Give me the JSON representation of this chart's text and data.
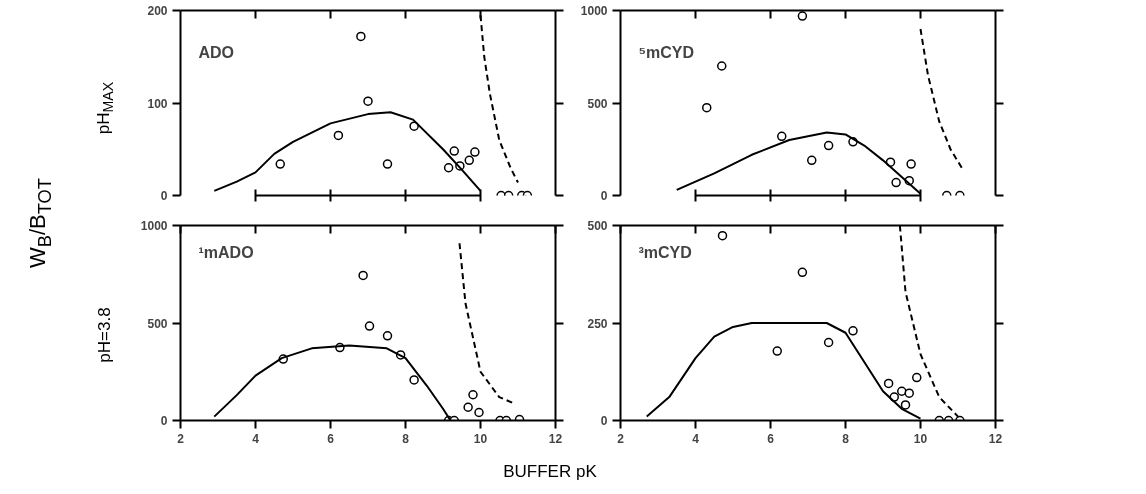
{
  "chart_data": [
    {
      "type": "scatter",
      "annotations": [
        "ADO",
        "W$_{B}$/B$_{TOT}$"
      ],
      "ylabel": "pH$_{MAX}$",
      "xlim": [
        2,
        12
      ],
      "ylim": [
        0,
        200
      ],
      "xticks": [
        {
          "value": 4,
          "label": null
        },
        {
          "value": 6,
          "label": null
        },
        {
          "value": 8,
          "label": null
        },
        {
          "value": 10,
          "label": null
        }
      ],
      "yticks": [
        0,
        100,
        200
      ],
      "tick_labels": "y",
      "series": [
        {
          "marker": "circle",
          "color": "#000000",
          "x": [
            4.66,
            6.21,
            6.81,
            7.0,
            7.52,
            8.23,
            9.15,
            9.3,
            9.45,
            9.7,
            9.85,
            10.55,
            10.75,
            11.1,
            11.25
          ],
          "values": [
            34,
            65,
            172,
            102,
            34,
            75,
            30,
            48,
            32,
            38,
            47,
            0,
            0,
            0,
            0
          ]
        },
        {
          "type": "line",
          "line_style": "solid",
          "color": "#000000",
          "x": [
            2.9,
            3.5,
            4.0,
            4.5,
            5.0,
            6.0,
            7.0,
            7.6,
            8.2,
            9.0,
            9.5,
            10.0
          ],
          "values": [
            5,
            15,
            25,
            45,
            58,
            78,
            88,
            90,
            82,
            50,
            28,
            5
          ]
        },
        {
          "type": "line",
          "line_style": "dashed",
          "color": "#000000",
          "x": [
            10.0,
            10.1,
            10.25,
            10.5,
            10.8,
            11.0
          ],
          "values": [
            195,
            150,
            110,
            60,
            30,
            14
          ]
        }
      ]
    },
    {
      "type": "scatter",
      "annotations": [
        "⁵mCYD"
      ],
      "xlim": [
        2,
        12
      ],
      "ylim": [
        0,
        1000
      ],
      "xticks": [
        {
          "value": 4,
          "label": null
        },
        {
          "value": 6,
          "label": null
        },
        {
          "value": 8,
          "label": null
        },
        {
          "value": 10,
          "label": null
        }
      ],
      "yticks": [
        0,
        500,
        1000
      ],
      "tick_labels": "y",
      "series": [
        {
          "marker": "circle",
          "color": "#000000",
          "x": [
            4.3,
            4.7,
            6.3,
            6.85,
            7.1,
            7.55,
            8.2,
            9.2,
            9.35,
            9.7,
            9.75,
            10.7,
            11.05
          ],
          "values": [
            475,
            700,
            320,
            970,
            190,
            270,
            290,
            180,
            70,
            80,
            170,
            0,
            0
          ]
        },
        {
          "type": "line",
          "line_style": "solid",
          "color": "#000000",
          "x": [
            3.5,
            4.5,
            5.5,
            6.5,
            7.5,
            8.0,
            8.5,
            9.0,
            9.5,
            10.0
          ],
          "values": [
            30,
            120,
            220,
            300,
            340,
            330,
            270,
            190,
            100,
            10
          ]
        },
        {
          "type": "line",
          "line_style": "dashed",
          "color": "#000000",
          "x": [
            10.0,
            10.2,
            10.5,
            10.8,
            11.1
          ],
          "values": [
            900,
            650,
            400,
            250,
            150
          ]
        }
      ]
    },
    {
      "type": "scatter",
      "annotations": [
        "¹mADO"
      ],
      "ylabel": "pH=3.8",
      "xlabel": "BUFFER pK",
      "xlim": [
        2,
        12
      ],
      "ylim": [
        0,
        1000
      ],
      "xticks": [
        2,
        4,
        6,
        8,
        10,
        12
      ],
      "yticks": [
        0,
        500,
        1000
      ],
      "series": [
        {
          "marker": "circle",
          "color": "#000000",
          "x": [
            4.74,
            6.25,
            6.87,
            7.04,
            7.52,
            7.87,
            8.23,
            9.15,
            9.3,
            9.67,
            9.8,
            9.96,
            10.52,
            10.69,
            11.04
          ],
          "values": [
            315,
            374,
            744,
            484,
            434,
            336,
            208,
            0,
            0,
            68,
            132,
            41,
            0,
            0,
            5
          ]
        },
        {
          "type": "line",
          "line_style": "solid",
          "color": "#000000",
          "x": [
            2.9,
            3.5,
            4.0,
            4.7,
            5.5,
            6.5,
            7.5,
            8.0,
            8.57,
            9.0,
            9.2
          ],
          "values": [
            20,
            130,
            230,
            320,
            370,
            385,
            370,
            320,
            178,
            60,
            0
          ]
        },
        {
          "type": "line",
          "line_style": "dashed",
          "color": "#000000",
          "x": [
            9.44,
            9.6,
            10.0,
            10.5,
            10.9
          ],
          "values": [
            909,
            600,
            250,
            120,
            87
          ]
        }
      ]
    },
    {
      "type": "scatter",
      "annotations": [
        "³mCYD"
      ],
      "xlim": [
        2,
        12
      ],
      "ylim": [
        0,
        500
      ],
      "xticks": [
        2,
        4,
        6,
        8,
        10,
        12
      ],
      "yticks": [
        0,
        250,
        500
      ],
      "series": [
        {
          "marker": "circle",
          "color": "#000000",
          "x": [
            4.72,
            6.18,
            6.85,
            7.55,
            8.2,
            9.15,
            9.3,
            9.5,
            9.6,
            9.7,
            9.9,
            10.5,
            10.75,
            11.05
          ],
          "values": [
            474,
            178,
            380,
            200,
            230,
            95,
            60,
            75,
            40,
            70,
            110,
            0,
            0,
            0
          ]
        },
        {
          "type": "line",
          "line_style": "solid",
          "color": "#000000",
          "x": [
            2.7,
            3.3,
            4.0,
            4.5,
            5.0,
            5.5,
            7.5,
            8.0,
            8.5,
            9.0,
            9.5,
            10.0
          ],
          "values": [
            10,
            60,
            160,
            215,
            240,
            250,
            250,
            225,
            150,
            75,
            30,
            5
          ]
        },
        {
          "type": "line",
          "line_style": "dashed",
          "color": "#000000",
          "x": [
            9.45,
            9.6,
            10.0,
            10.5,
            11.0
          ],
          "values": [
            500,
            330,
            170,
            60,
            10
          ]
        }
      ]
    }
  ]
}
